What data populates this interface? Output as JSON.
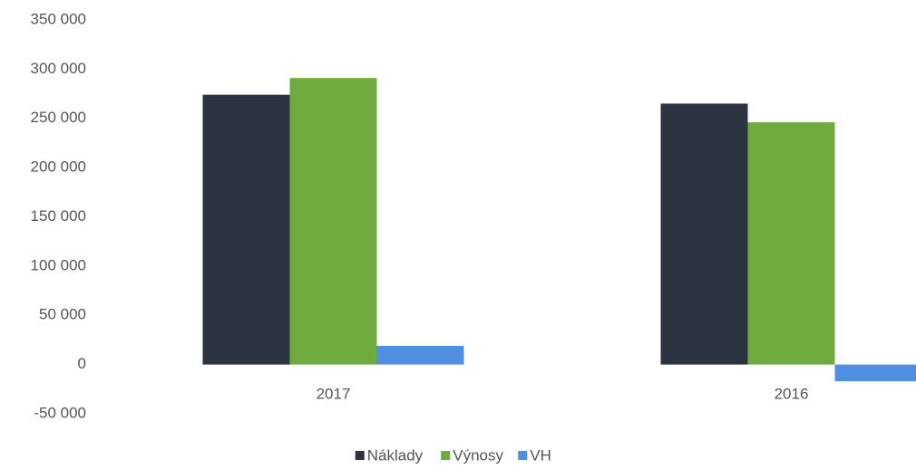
{
  "chart_data": {
    "type": "bar",
    "categories": [
      "2017",
      "2016"
    ],
    "series": [
      {
        "name": "Náklady",
        "color": "#2c3441",
        "values": [
          274000,
          265000
        ]
      },
      {
        "name": "Výnosy",
        "color": "#6faa3e",
        "values": [
          291000,
          246000
        ]
      },
      {
        "name": "VH",
        "color": "#4f8ee0",
        "values": [
          19000,
          -17000
        ]
      }
    ],
    "ylim": [
      -50000,
      350000
    ],
    "yticks": [
      {
        "value": -50000,
        "label": "-50 000"
      },
      0,
      {
        "value": 50000,
        "label": "50 000"
      },
      {
        "value": 100000,
        "label": "100 000"
      },
      {
        "value": 150000,
        "label": "150 000"
      },
      {
        "value": 200000,
        "label": "200 000"
      },
      {
        "value": 250000,
        "label": "250 000"
      },
      {
        "value": 300000,
        "label": "300 000"
      },
      {
        "value": 350000,
        "label": "350 000"
      }
    ],
    "grid": false,
    "legend": "bottom"
  }
}
